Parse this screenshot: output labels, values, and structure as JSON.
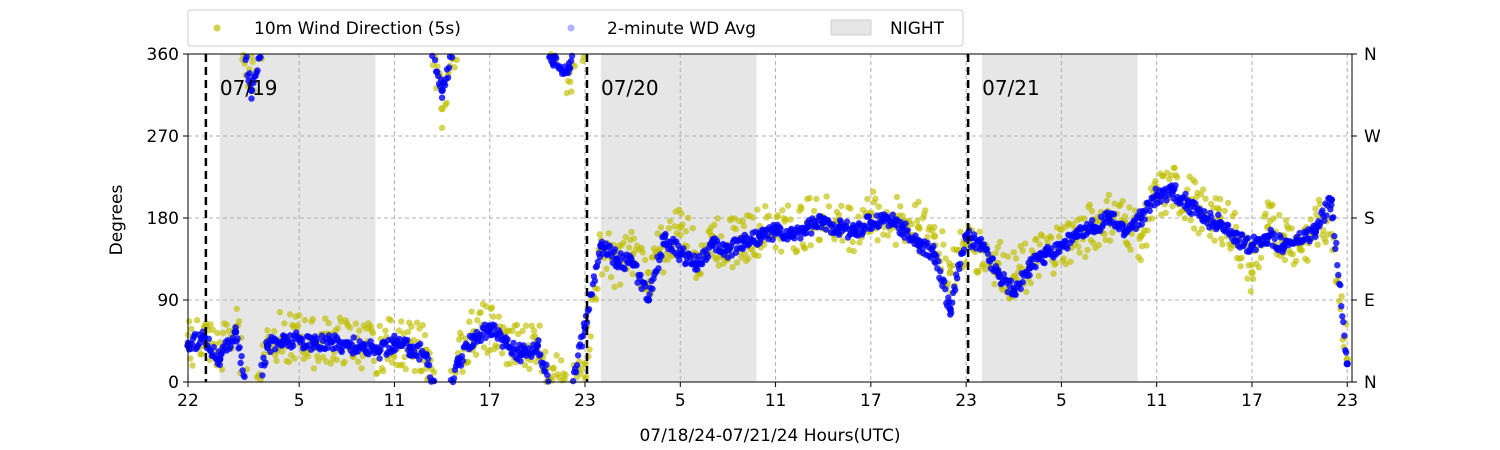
{
  "chart_data": {
    "type": "scatter",
    "xlabel": "07/18/24-07/21/24  Hours(UTC)",
    "ylabel": "Degrees",
    "ylim": [
      0,
      360
    ],
    "xlim_hours": [
      0,
      73.3
    ],
    "x_ticks": [
      {
        "hour": 0,
        "label": "22"
      },
      {
        "hour": 7,
        "label": "5"
      },
      {
        "hour": 13,
        "label": "11"
      },
      {
        "hour": 19,
        "label": "17"
      },
      {
        "hour": 25,
        "label": "23"
      },
      {
        "hour": 31,
        "label": "5"
      },
      {
        "hour": 37,
        "label": "11"
      },
      {
        "hour": 43,
        "label": "17"
      },
      {
        "hour": 49,
        "label": "23"
      },
      {
        "hour": 55,
        "label": "5"
      },
      {
        "hour": 61,
        "label": "11"
      },
      {
        "hour": 67,
        "label": "17"
      },
      {
        "hour": 73,
        "label": "23"
      }
    ],
    "y_ticks": [
      0,
      90,
      180,
      270,
      360
    ],
    "y2_ticks": [
      {
        "value": 0,
        "label": "N"
      },
      {
        "value": 90,
        "label": "E"
      },
      {
        "value": 180,
        "label": "S"
      },
      {
        "value": 270,
        "label": "W"
      },
      {
        "value": 360,
        "label": "N"
      }
    ],
    "grid": true,
    "legend_position": "top-left, above plot",
    "legend": [
      {
        "label": "10m Wind Direction (5s)",
        "color": "#bfbf00",
        "kind": "point"
      },
      {
        "label": "2-minute WD Avg",
        "color": "#0000ff",
        "kind": "point"
      },
      {
        "label": "NIGHT",
        "color": "#e6e6e6",
        "kind": "patch"
      }
    ],
    "night_periods": [
      [
        2,
        11.8
      ],
      [
        26,
        35.8
      ],
      [
        50,
        59.8
      ]
    ],
    "day_markers": [
      {
        "hour": 1,
        "label": "07/19"
      },
      {
        "hour": 25,
        "label": "07/20"
      },
      {
        "hour": 49,
        "label": "07/21"
      }
    ],
    "series": [
      {
        "name": "10m Wind Direction (5s)",
        "color": "#bfbf00",
        "hours": [
          0,
          1,
          2,
          3,
          4,
          5,
          6,
          7,
          8,
          9,
          10,
          11,
          12,
          13,
          14,
          15,
          16,
          17,
          18,
          19,
          20,
          21,
          22,
          23,
          24,
          25,
          26,
          27,
          28,
          29,
          30,
          31,
          32,
          33,
          34,
          35,
          36,
          37,
          38,
          39,
          40,
          41,
          42,
          43,
          44,
          45,
          46,
          47,
          48,
          49,
          50,
          51,
          52,
          53,
          54,
          55,
          56,
          57,
          58,
          59,
          60,
          61,
          62,
          63,
          64,
          65,
          66,
          67,
          68,
          69,
          70,
          71,
          72,
          73
        ],
        "degrees": [
          40,
          50,
          30,
          60,
          330,
          45,
          50,
          48,
          40,
          45,
          42,
          40,
          35,
          45,
          40,
          35,
          300,
          25,
          55,
          60,
          40,
          35,
          45,
          15,
          340,
          20,
          145,
          130,
          140,
          120,
          150,
          170,
          140,
          160,
          150,
          160,
          165,
          170,
          165,
          175,
          180,
          175,
          170,
          185,
          180,
          175,
          170,
          160,
          120,
          150,
          145,
          130,
          115,
          130,
          140,
          150,
          160,
          170,
          180,
          175,
          160,
          200,
          210,
          200,
          185,
          180,
          160,
          120,
          170,
          160,
          150,
          170,
          180,
          25
        ]
      },
      {
        "name": "2-minute WD Avg",
        "color": "#0000ff",
        "hours": [
          0,
          1,
          2,
          3,
          4,
          5,
          6,
          7,
          8,
          9,
          10,
          11,
          12,
          13,
          14,
          15,
          16,
          17,
          18,
          19,
          20,
          21,
          22,
          23,
          24,
          25,
          26,
          27,
          28,
          29,
          30,
          31,
          32,
          33,
          34,
          35,
          36,
          37,
          38,
          39,
          40,
          41,
          42,
          43,
          44,
          45,
          46,
          47,
          48,
          49,
          50,
          51,
          52,
          53,
          54,
          55,
          56,
          57,
          58,
          59,
          60,
          61,
          62,
          63,
          64,
          65,
          66,
          67,
          68,
          69,
          70,
          71,
          72,
          73
        ],
        "degrees": [
          40,
          50,
          25,
          55,
          320,
          40,
          45,
          47,
          42,
          44,
          41,
          39,
          33,
          43,
          38,
          30,
          320,
          20,
          50,
          58,
          45,
          30,
          40,
          350,
          345,
          60,
          150,
          135,
          130,
          90,
          160,
          140,
          130,
          150,
          145,
          155,
          160,
          165,
          160,
          170,
          175,
          170,
          165,
          175,
          180,
          170,
          150,
          140,
          80,
          160,
          150,
          120,
          100,
          125,
          140,
          150,
          160,
          170,
          180,
          165,
          180,
          205,
          210,
          195,
          180,
          175,
          155,
          150,
          160,
          150,
          155,
          165,
          200,
          20
        ]
      }
    ]
  }
}
